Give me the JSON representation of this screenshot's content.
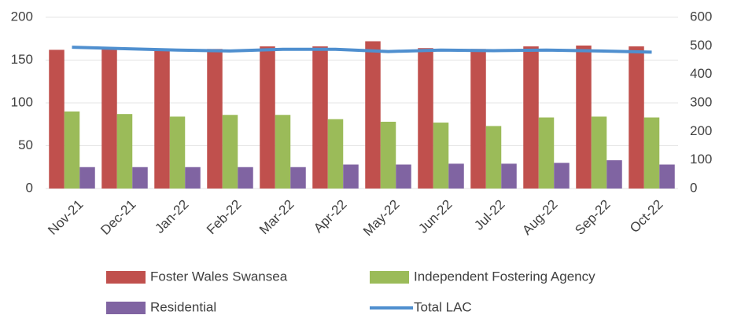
{
  "chart_data": {
    "type": "bar_line",
    "categories": [
      "Nov-21",
      "Dec-21",
      "Jan-22",
      "Feb-22",
      "Mar-22",
      "Apr-22",
      "May-22",
      "Jun-22",
      "Jul-22",
      "Aug-22",
      "Sep-22",
      "Oct-22"
    ],
    "series": [
      {
        "name": "Foster Wales Swansea",
        "color": "#c0504d",
        "kind": "bar",
        "values": [
          162,
          163,
          163,
          163,
          166,
          166,
          172,
          164,
          163,
          166,
          167,
          166
        ]
      },
      {
        "name": "Independent Fostering Agency",
        "color": "#9bbb59",
        "kind": "bar",
        "values": [
          90,
          87,
          84,
          86,
          86,
          81,
          78,
          77,
          73,
          83,
          84,
          83
        ]
      },
      {
        "name": "Residential",
        "color": "#8064a2",
        "kind": "bar",
        "values": [
          25,
          25,
          25,
          25,
          25,
          28,
          28,
          29,
          29,
          30,
          33,
          28
        ]
      },
      {
        "name": "Total LAC",
        "color": "#4f8fcf",
        "kind": "line",
        "axis": "y2",
        "values": [
          495,
          490,
          485,
          482,
          488,
          488,
          480,
          485,
          483,
          485,
          482,
          478
        ]
      }
    ],
    "ylim": [
      0,
      200
    ],
    "yticks": [
      0,
      50,
      100,
      150,
      200
    ],
    "y2lim": [
      0,
      600
    ],
    "y2ticks": [
      0,
      100,
      200,
      300,
      400,
      500,
      600
    ],
    "grid": true
  }
}
